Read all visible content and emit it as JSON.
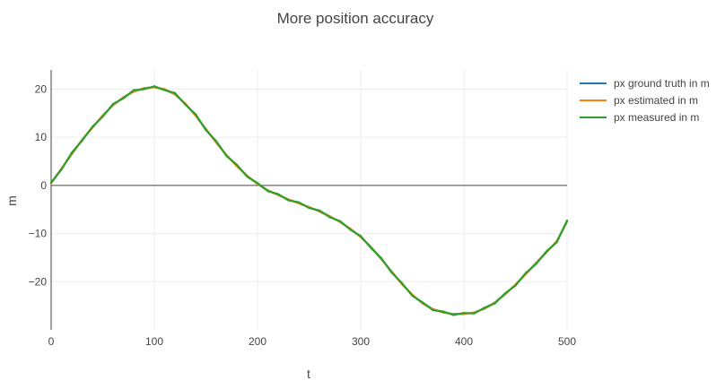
{
  "chart_data": {
    "type": "line",
    "title": "More position accuracy",
    "xlabel": "t",
    "ylabel": "m",
    "xlim": [
      0,
      500
    ],
    "ylim": [
      -30,
      24
    ],
    "xticks": [
      0,
      100,
      200,
      300,
      400,
      500
    ],
    "yticks": [
      -20,
      -10,
      0,
      10,
      20
    ],
    "xtick_labels": [
      "0",
      "100",
      "200",
      "300",
      "400",
      "500"
    ],
    "ytick_labels": [
      "−20",
      "−10",
      "0",
      "10",
      "20"
    ],
    "grid": true,
    "legend_position": "top-right",
    "series": [
      {
        "name": "px ground truth in m",
        "color": "#1f77b4",
        "x": [
          0,
          10,
          20,
          30,
          40,
          50,
          60,
          70,
          80,
          90,
          100,
          110,
          120,
          130,
          140,
          150,
          160,
          170,
          180,
          190,
          200,
          210,
          220,
          230,
          240,
          250,
          260,
          270,
          280,
          290,
          300,
          310,
          320,
          330,
          340,
          350,
          360,
          370,
          380,
          390,
          400,
          410,
          420,
          430,
          440,
          450,
          460,
          470,
          480,
          490,
          500
        ],
        "y": [
          0.5,
          3.5,
          6.5,
          9.5,
          12.0,
          14.5,
          16.7,
          18.3,
          19.5,
          20.2,
          20.4,
          20.0,
          18.9,
          17.0,
          14.5,
          11.7,
          8.9,
          6.3,
          4.0,
          2.0,
          0.3,
          -1.0,
          -2.0,
          -2.9,
          -3.7,
          -4.5,
          -5.4,
          -6.4,
          -7.6,
          -9.0,
          -10.7,
          -12.8,
          -15.3,
          -17.9,
          -20.5,
          -22.7,
          -24.5,
          -25.7,
          -26.4,
          -26.7,
          -26.7,
          -26.4,
          -25.6,
          -24.3,
          -22.6,
          -20.6,
          -18.4,
          -16.1,
          -13.9,
          -11.6,
          -7.5
        ]
      },
      {
        "name": "px estimated in m",
        "color": "#ff7f0e",
        "x": [
          0,
          10,
          20,
          30,
          40,
          50,
          60,
          70,
          80,
          90,
          100,
          110,
          120,
          130,
          140,
          150,
          160,
          170,
          180,
          190,
          200,
          210,
          220,
          230,
          240,
          250,
          260,
          270,
          280,
          290,
          300,
          310,
          320,
          330,
          340,
          350,
          360,
          370,
          380,
          390,
          400,
          410,
          420,
          430,
          440,
          450,
          460,
          470,
          480,
          490,
          500
        ],
        "y": [
          0.5,
          3.5,
          6.5,
          9.5,
          12.0,
          14.5,
          16.7,
          18.3,
          19.5,
          20.2,
          20.4,
          20.0,
          18.9,
          17.0,
          14.5,
          11.7,
          8.9,
          6.3,
          4.0,
          2.0,
          0.3,
          -1.0,
          -2.0,
          -2.9,
          -3.7,
          -4.5,
          -5.4,
          -6.4,
          -7.6,
          -9.0,
          -10.7,
          -12.8,
          -15.3,
          -17.9,
          -20.5,
          -22.7,
          -24.5,
          -25.7,
          -26.4,
          -26.7,
          -26.7,
          -26.4,
          -25.6,
          -24.3,
          -22.6,
          -20.6,
          -18.4,
          -16.1,
          -13.9,
          -11.6,
          -7.5
        ]
      },
      {
        "name": "px measured in m",
        "color": "#2ca02c",
        "x": [
          0,
          10,
          20,
          30,
          40,
          50,
          60,
          70,
          80,
          90,
          100,
          110,
          120,
          130,
          140,
          150,
          160,
          170,
          180,
          190,
          200,
          210,
          220,
          230,
          240,
          250,
          260,
          270,
          280,
          290,
          300,
          310,
          320,
          330,
          340,
          350,
          360,
          370,
          380,
          390,
          400,
          410,
          420,
          430,
          440,
          450,
          460,
          470,
          480,
          490,
          500
        ],
        "y": [
          0.6,
          3.3,
          6.8,
          9.3,
          12.2,
          14.3,
          16.9,
          18.1,
          19.8,
          20.0,
          20.6,
          19.8,
          19.2,
          16.8,
          14.8,
          11.5,
          9.2,
          6.1,
          4.3,
          1.8,
          0.5,
          -1.2,
          -1.8,
          -3.1,
          -3.5,
          -4.7,
          -5.2,
          -6.6,
          -7.4,
          -9.2,
          -10.5,
          -13.0,
          -15.1,
          -18.1,
          -20.3,
          -22.9,
          -24.3,
          -25.9,
          -26.2,
          -26.9,
          -26.5,
          -26.6,
          -25.4,
          -24.5,
          -22.4,
          -20.8,
          -18.2,
          -16.3,
          -13.7,
          -11.8,
          -7.3
        ]
      }
    ]
  }
}
